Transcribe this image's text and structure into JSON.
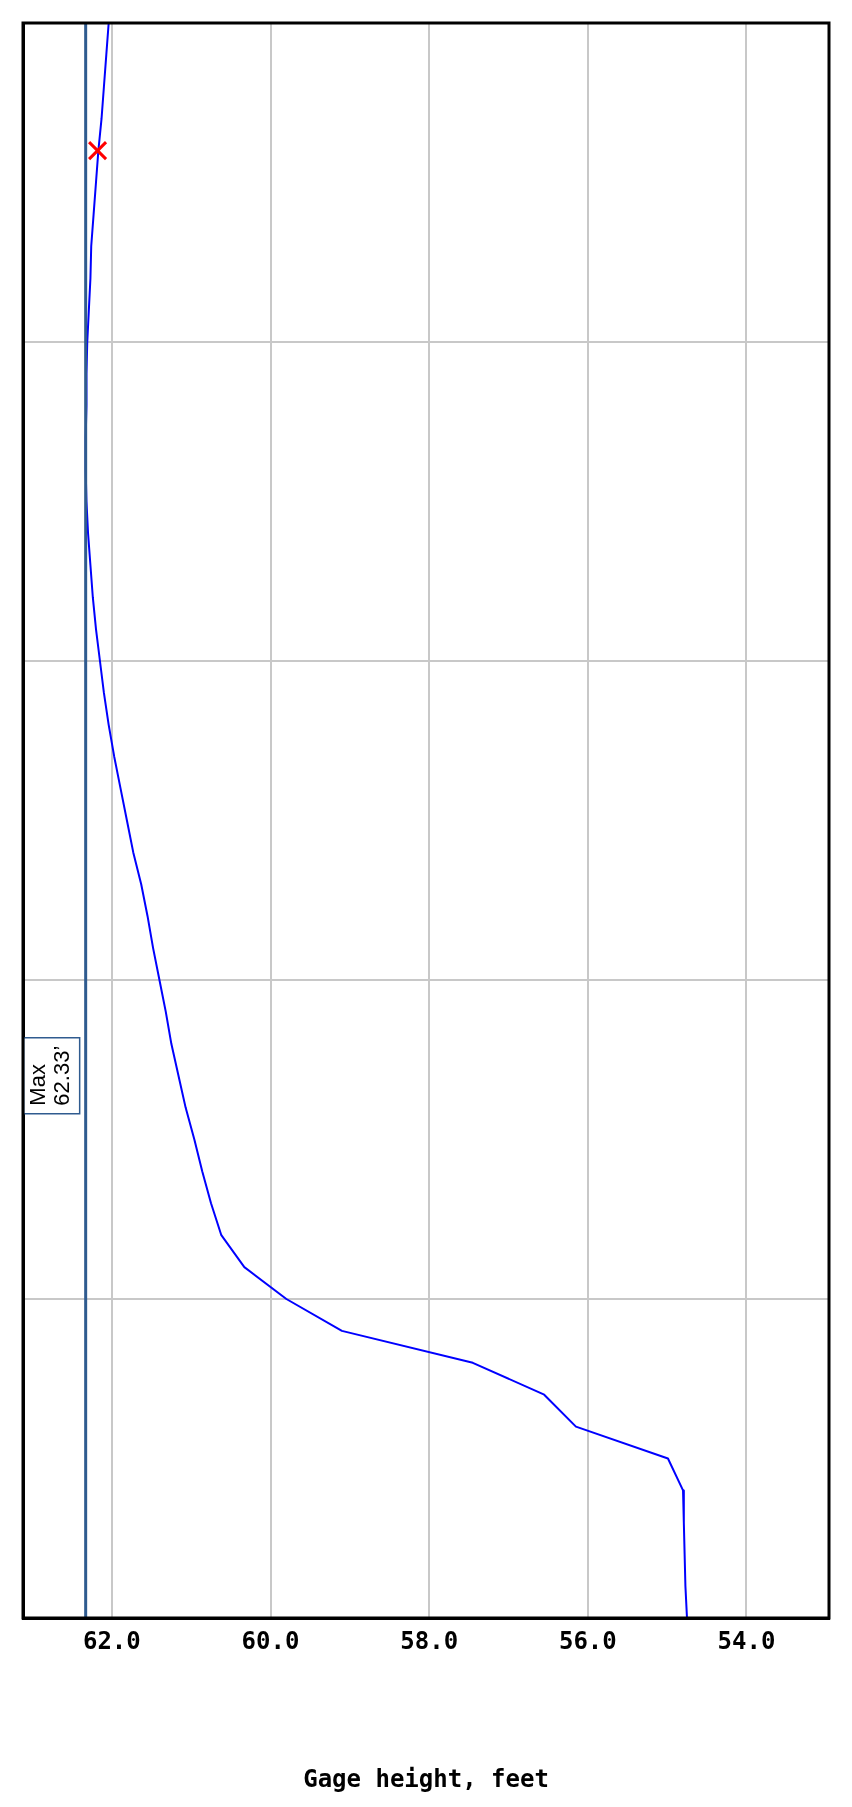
{
  "chart_data": {
    "type": "line",
    "orientation": "horizontal",
    "xlabel": "Gage height, feet",
    "categories": [
      null,
      null,
      null,
      null,
      null,
      null,
      null,
      null,
      null,
      null,
      null,
      null,
      null,
      null,
      null,
      null,
      null,
      null,
      null,
      null,
      null,
      null,
      null,
      null,
      null,
      null,
      null,
      null,
      null,
      null,
      null,
      null,
      null,
      null,
      null,
      null,
      null,
      null,
      null,
      null,
      null,
      null,
      null,
      null,
      null,
      null,
      null,
      null,
      null,
      null,
      null
    ],
    "series": [
      {
        "color": "#0000ff",
        "values": [
          62.04,
          62.07,
          62.1,
          62.13,
          62.17,
          62.2,
          62.23,
          62.26,
          62.27,
          62.29,
          62.31,
          62.32,
          62.32,
          62.33,
          62.33,
          62.32,
          62.3,
          62.27,
          62.24,
          62.2,
          62.15,
          62.1,
          62.04,
          61.97,
          61.89,
          61.81,
          61.73,
          61.63,
          61.55,
          61.48,
          61.4,
          61.32,
          61.25,
          61.16,
          61.07,
          60.96,
          60.86,
          60.75,
          60.62,
          60.33,
          59.8,
          59.1,
          57.45,
          56.55,
          56.15,
          54.99,
          54.8,
          54.79,
          54.78,
          54.77,
          54.75
        ]
      },
      {
        "type": "scatter",
        "color": "#ff0000",
        "marker": "cross",
        "values": [
          null,
          null,
          null,
          null,
          62.18,
          null,
          null,
          null,
          null,
          null,
          null,
          null,
          null,
          null,
          null,
          null,
          null,
          null,
          null,
          null,
          null,
          null,
          null,
          null,
          null,
          null,
          null,
          null,
          null,
          null,
          null,
          null,
          null,
          null,
          null,
          null,
          null,
          null,
          null,
          null,
          null,
          null,
          null,
          null,
          null,
          null,
          null,
          null,
          null,
          null,
          null
        ]
      }
    ],
    "xlim": [
      63.12,
      52.96
    ],
    "xticks": [
      {
        "value": 62,
        "label": "62.0"
      },
      {
        "value": 60,
        "label": "60.0"
      },
      {
        "value": 58,
        "label": "58.0"
      },
      {
        "value": 56,
        "label": "56.0"
      },
      {
        "value": 54,
        "label": "54.0"
      }
    ],
    "grid": true,
    "legend": false,
    "marker": "none",
    "tick_labels": "x",
    "ref_lines": [
      {
        "axis": "x",
        "value": 62.33,
        "label": "Max\n62.33’",
        "color": "#2f5b8f"
      }
    ]
  }
}
